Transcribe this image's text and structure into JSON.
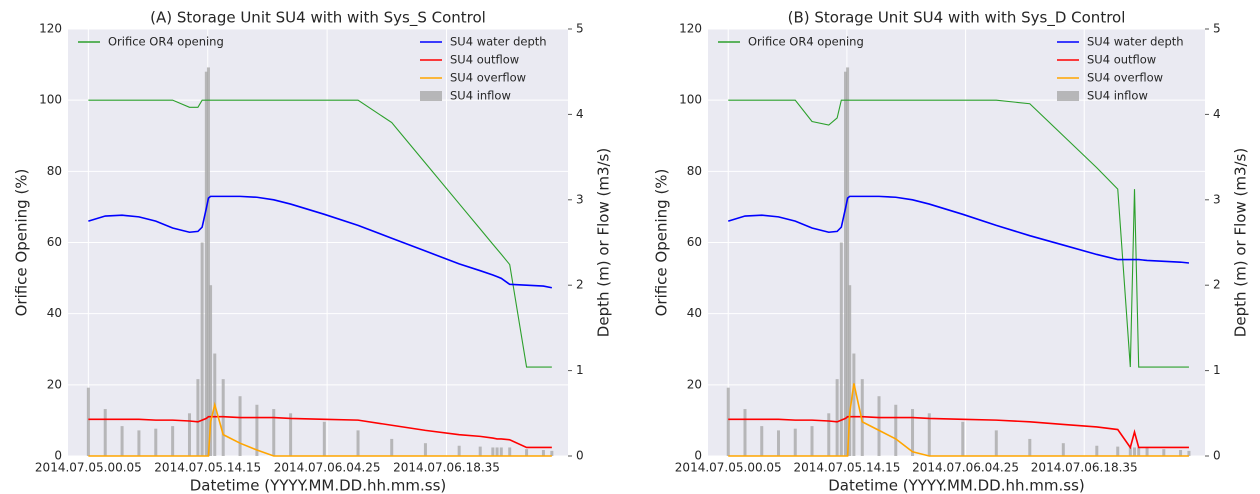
{
  "chart_data": [
    {
      "type": "line",
      "title": "(A) Storage Unit SU4 with with Sys_S Control",
      "x_label": "Datetime (YYYY.MM.DD.hh.mm.ss)",
      "y_label": "Orifice Opening (%)",
      "y2_label": "Depth (m) or Flow (m3/s)",
      "x": [
        "2014.07.05.00.05",
        "2014.07.05.02.05",
        "2014.07.05.04.05",
        "2014.07.05.06.05",
        "2014.07.05.08.05",
        "2014.07.05.10.05",
        "2014.07.05.12.05",
        "2014.07.05.13.05",
        "2014.07.05.13.35",
        "2014.07.05.14.05",
        "2014.07.05.14.20",
        "2014.07.05.14.35",
        "2014.07.05.15.05",
        "2014.07.05.16.05",
        "2014.07.05.18.05",
        "2014.07.05.20.05",
        "2014.07.05.22.05",
        "2014.07.06.00.05",
        "2014.07.06.04.05",
        "2014.07.06.08.05",
        "2014.07.06.12.05",
        "2014.07.06.16.05",
        "2014.07.06.20.05",
        "2014.07.06.22.35",
        "2014.07.07.00.05",
        "2014.07.07.00.35",
        "2014.07.07.01.05",
        "2014.07.07.02.05",
        "2014.07.07.04.05",
        "2014.07.07.06.05",
        "2014.07.07.07.05"
      ],
      "xlim": [
        "2014.07.04.21.40",
        "2014.07.07.09.00"
      ],
      "xticks": [
        "2014.07.05.00.05",
        "2014.07.05.14.15",
        "2014.07.06.04.25",
        "2014.07.06.18.35"
      ],
      "ylim": [
        0,
        120
      ],
      "yticks": [
        0,
        20,
        40,
        60,
        80,
        100,
        120
      ],
      "y2lim": [
        0,
        5
      ],
      "y2ticks": [
        0,
        1,
        2,
        3,
        4,
        5
      ],
      "grid": true,
      "background": "#eaeaf2",
      "legend_left": "upper left",
      "legend_right": "upper right",
      "series": [
        {
          "name": "Orifice OR4 opening",
          "type": "line",
          "color": "#2ca02c",
          "axis": "y",
          "values": [
            100,
            100,
            100,
            100,
            100,
            100,
            98,
            98,
            100,
            100,
            100,
            100,
            100,
            100,
            100,
            100,
            100,
            100,
            100,
            100,
            93.7,
            82.3,
            70.9,
            63.8,
            59.5,
            58.1,
            56.7,
            53.8,
            25,
            25,
            25
          ]
        },
        {
          "name": "SU4 water depth",
          "type": "line",
          "color": "#0000ff",
          "axis": "y2",
          "values": [
            2.75,
            2.81,
            2.82,
            2.8,
            2.75,
            2.67,
            2.62,
            2.63,
            2.68,
            2.9,
            3.02,
            3.04,
            3.04,
            3.04,
            3.04,
            3.03,
            3.0,
            2.95,
            2.83,
            2.7,
            2.55,
            2.4,
            2.25,
            2.17,
            2.12,
            2.1,
            2.08,
            2.01,
            2.0,
            1.99,
            1.97
          ]
        },
        {
          "name": "SU4 outflow",
          "type": "line",
          "color": "#ff0000",
          "axis": "y2",
          "values": [
            0.43,
            0.43,
            0.43,
            0.43,
            0.42,
            0.42,
            0.41,
            0.4,
            0.42,
            0.44,
            0.46,
            0.46,
            0.46,
            0.46,
            0.45,
            0.45,
            0.45,
            0.44,
            0.43,
            0.42,
            0.36,
            0.3,
            0.25,
            0.23,
            0.21,
            0.2,
            0.2,
            0.19,
            0.1,
            0.1,
            0.1
          ]
        },
        {
          "name": "SU4 overflow",
          "type": "line",
          "color": "#ffa500",
          "axis": "y2",
          "values": [
            0,
            0,
            0,
            0,
            0,
            0,
            0,
            0,
            0,
            0,
            0,
            0.4,
            0.6,
            0.25,
            0.15,
            0.07,
            0,
            0,
            0,
            0,
            0,
            0,
            0,
            0,
            0,
            0,
            0,
            0,
            0,
            0,
            0
          ]
        },
        {
          "name": "SU4 inflow",
          "type": "bar",
          "color": "#a9a9a9",
          "axis": "y2",
          "values": [
            0.8,
            0.55,
            0.35,
            0.3,
            0.32,
            0.35,
            0.5,
            0.9,
            2.5,
            4.5,
            4.55,
            2.0,
            1.2,
            0.9,
            0.7,
            0.6,
            0.55,
            0.5,
            0.4,
            0.3,
            0.2,
            0.15,
            0.12,
            0.11,
            0.1,
            0.1,
            0.1,
            0.1,
            0.08,
            0.07,
            0.06
          ]
        }
      ]
    },
    {
      "type": "line",
      "title": "(B) Storage Unit SU4 with with Sys_D Control",
      "x_label": "Datetime (YYYY.MM.DD.hh.mm.ss)",
      "y_label": "Orifice Opening (%)",
      "y2_label": "Depth (m) or Flow (m3/s)",
      "x": [
        "2014.07.05.00.05",
        "2014.07.05.02.05",
        "2014.07.05.04.05",
        "2014.07.05.06.05",
        "2014.07.05.08.05",
        "2014.07.05.10.05",
        "2014.07.05.12.05",
        "2014.07.05.13.05",
        "2014.07.05.13.35",
        "2014.07.05.14.05",
        "2014.07.05.14.20",
        "2014.07.05.14.35",
        "2014.07.05.15.05",
        "2014.07.05.16.05",
        "2014.07.05.18.05",
        "2014.07.05.20.05",
        "2014.07.05.22.05",
        "2014.07.06.00.05",
        "2014.07.06.04.05",
        "2014.07.06.08.05",
        "2014.07.06.12.05",
        "2014.07.06.16.05",
        "2014.07.06.20.05",
        "2014.07.06.22.35",
        "2014.07.07.00.05",
        "2014.07.07.00.35",
        "2014.07.07.01.05",
        "2014.07.07.02.05",
        "2014.07.07.04.05",
        "2014.07.07.06.05",
        "2014.07.07.07.05"
      ],
      "xlim": [
        "2014.07.04.21.40",
        "2014.07.07.09.00"
      ],
      "xticks": [
        "2014.07.05.00.05",
        "2014.07.05.14.15",
        "2014.07.06.04.25",
        "2014.07.06.18.35"
      ],
      "ylim": [
        0,
        120
      ],
      "yticks": [
        0,
        20,
        40,
        60,
        80,
        100,
        120
      ],
      "y2lim": [
        0,
        5
      ],
      "y2ticks": [
        0,
        1,
        2,
        3,
        4,
        5
      ],
      "grid": true,
      "background": "#eaeaf2",
      "legend_left": "upper left",
      "legend_right": "upper right",
      "series": [
        {
          "name": "Orifice OR4 opening",
          "type": "line",
          "color": "#2ca02c",
          "axis": "y",
          "values": [
            100,
            100,
            100,
            100,
            100,
            94,
            93,
            95,
            100,
            100,
            100,
            100,
            100,
            100,
            100,
            100,
            100,
            100,
            100,
            100,
            99,
            90,
            81,
            75,
            25,
            75,
            25,
            25,
            25,
            25,
            25
          ]
        },
        {
          "name": "SU4 water depth",
          "type": "line",
          "color": "#0000ff",
          "axis": "y2",
          "values": [
            2.75,
            2.81,
            2.82,
            2.8,
            2.75,
            2.67,
            2.62,
            2.63,
            2.68,
            2.9,
            3.02,
            3.04,
            3.04,
            3.04,
            3.04,
            3.03,
            3.0,
            2.95,
            2.83,
            2.7,
            2.58,
            2.47,
            2.36,
            2.3,
            2.3,
            2.3,
            2.3,
            2.29,
            2.28,
            2.27,
            2.26
          ]
        },
        {
          "name": "SU4 outflow",
          "type": "line",
          "color": "#ff0000",
          "axis": "y2",
          "values": [
            0.43,
            0.43,
            0.43,
            0.43,
            0.42,
            0.42,
            0.41,
            0.4,
            0.42,
            0.44,
            0.46,
            0.46,
            0.46,
            0.46,
            0.45,
            0.45,
            0.45,
            0.44,
            0.43,
            0.42,
            0.4,
            0.37,
            0.34,
            0.31,
            0.1,
            0.28,
            0.1,
            0.1,
            0.1,
            0.1,
            0.1
          ]
        },
        {
          "name": "SU4 overflow",
          "type": "line",
          "color": "#ffa500",
          "axis": "y2",
          "values": [
            0,
            0,
            0,
            0,
            0,
            0,
            0,
            0,
            0,
            0,
            0,
            0.5,
            0.85,
            0.4,
            0.3,
            0.2,
            0.05,
            0,
            0,
            0,
            0,
            0,
            0,
            0,
            0,
            0,
            0,
            0,
            0,
            0,
            0
          ]
        },
        {
          "name": "SU4 inflow",
          "type": "bar",
          "color": "#a9a9a9",
          "axis": "y2",
          "values": [
            0.8,
            0.55,
            0.35,
            0.3,
            0.32,
            0.35,
            0.5,
            0.9,
            2.5,
            4.5,
            4.55,
            2.0,
            1.2,
            0.9,
            0.7,
            0.6,
            0.55,
            0.5,
            0.4,
            0.3,
            0.2,
            0.15,
            0.12,
            0.11,
            0.1,
            0.1,
            0.1,
            0.1,
            0.08,
            0.07,
            0.06
          ]
        }
      ]
    }
  ]
}
